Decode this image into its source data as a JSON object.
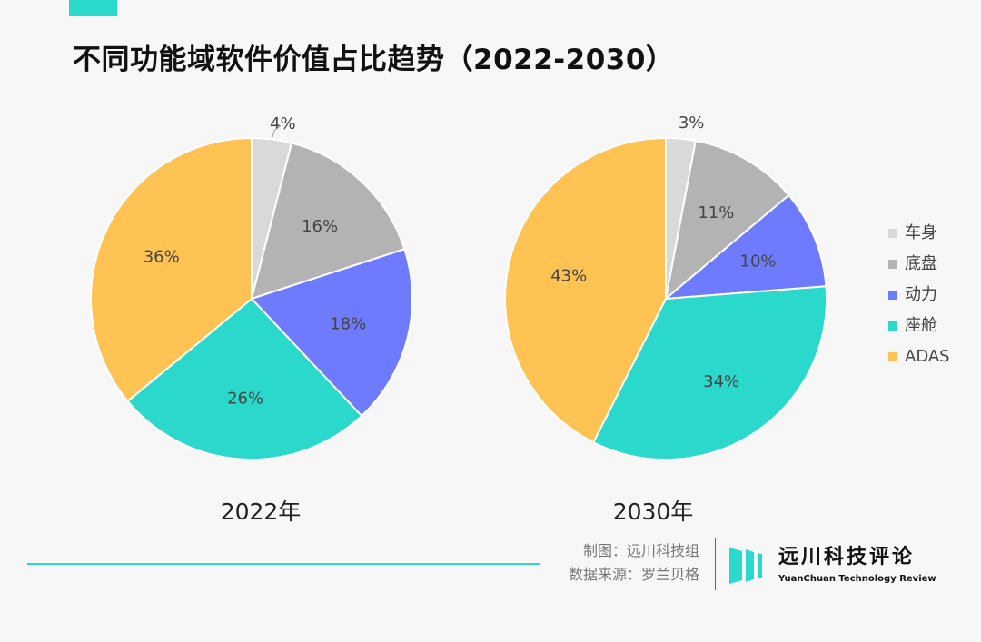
{
  "title": "不同功能域软件价值占比趋势（2022-2030）",
  "chart_data": [
    {
      "type": "pie",
      "title": "2022年",
      "categories": [
        "车身",
        "底盘",
        "动力",
        "座舱",
        "ADAS"
      ],
      "values": [
        4,
        16,
        18,
        26,
        36
      ],
      "labels": [
        "4%",
        "16%",
        "18%",
        "26%",
        "36%"
      ]
    },
    {
      "type": "pie",
      "title": "2030年",
      "categories": [
        "车身",
        "底盘",
        "动力",
        "座舱",
        "ADAS"
      ],
      "values": [
        3,
        11,
        10,
        34,
        43
      ],
      "labels": [
        "3%",
        "11%",
        "10%",
        "34%",
        "43%"
      ]
    }
  ],
  "legend": {
    "position": "right",
    "items": [
      {
        "label": "车身",
        "color": "#d9d9d9"
      },
      {
        "label": "底盘",
        "color": "#b3b3b3"
      },
      {
        "label": "动力",
        "color": "#6f7bff"
      },
      {
        "label": "座舱",
        "color": "#2ad8cc"
      },
      {
        "label": "ADAS",
        "color": "#ffc353"
      }
    ]
  },
  "credits": {
    "maker": "制图：远川科技组",
    "source": "数据来源：罗兰贝格"
  },
  "logo": {
    "cn": "远川科技评论",
    "en": "YuanChuan Technology Review"
  }
}
